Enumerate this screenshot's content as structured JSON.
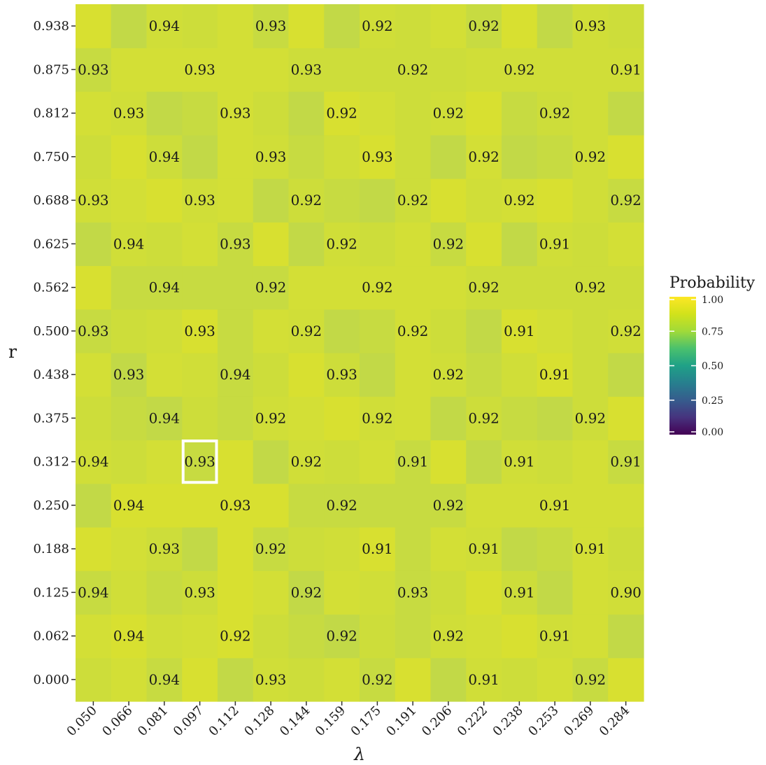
{
  "chart_data": {
    "type": "heatmap",
    "xlabel": "λ",
    "ylabel": "r",
    "x_ticks": [
      "0.050",
      "0.066",
      "0.081",
      "0.097",
      "0.112",
      "0.128",
      "0.144",
      "0.159",
      "0.175",
      "0.191",
      "0.206",
      "0.222",
      "0.238",
      "0.253",
      "0.269",
      "0.284"
    ],
    "y_ticks": [
      "0.000",
      "0.062",
      "0.125",
      "0.188",
      "0.250",
      "0.312",
      "0.375",
      "0.438",
      "0.500",
      "0.562",
      "0.625",
      "0.688",
      "0.750",
      "0.812",
      "0.875",
      "0.938"
    ],
    "grid": false,
    "legend": {
      "title": "Probability",
      "placement": "right",
      "ticks": [
        "0.00",
        "0.25",
        "0.50",
        "0.75",
        "1.00"
      ],
      "range": [
        0,
        1
      ]
    },
    "colorscale": "viridis",
    "highlight": {
      "x": "0.097",
      "y": "0.312",
      "color": "#ffffff"
    },
    "labels": [
      {
        "x": "0.081",
        "y": "0.938",
        "text": "0.94"
      },
      {
        "x": "0.128",
        "y": "0.938",
        "text": "0.93"
      },
      {
        "x": "0.175",
        "y": "0.938",
        "text": "0.92"
      },
      {
        "x": "0.222",
        "y": "0.938",
        "text": "0.92"
      },
      {
        "x": "0.269",
        "y": "0.938",
        "text": "0.93"
      },
      {
        "x": "0.050",
        "y": "0.875",
        "text": "0.93"
      },
      {
        "x": "0.097",
        "y": "0.875",
        "text": "0.93"
      },
      {
        "x": "0.144",
        "y": "0.875",
        "text": "0.93"
      },
      {
        "x": "0.191",
        "y": "0.875",
        "text": "0.92"
      },
      {
        "x": "0.238",
        "y": "0.875",
        "text": "0.92"
      },
      {
        "x": "0.284",
        "y": "0.875",
        "text": "0.91"
      },
      {
        "x": "0.066",
        "y": "0.812",
        "text": "0.93"
      },
      {
        "x": "0.112",
        "y": "0.812",
        "text": "0.93"
      },
      {
        "x": "0.159",
        "y": "0.812",
        "text": "0.92"
      },
      {
        "x": "0.206",
        "y": "0.812",
        "text": "0.92"
      },
      {
        "x": "0.253",
        "y": "0.812",
        "text": "0.92"
      },
      {
        "x": "0.081",
        "y": "0.750",
        "text": "0.94"
      },
      {
        "x": "0.128",
        "y": "0.750",
        "text": "0.93"
      },
      {
        "x": "0.175",
        "y": "0.750",
        "text": "0.93"
      },
      {
        "x": "0.222",
        "y": "0.750",
        "text": "0.92"
      },
      {
        "x": "0.269",
        "y": "0.750",
        "text": "0.92"
      },
      {
        "x": "0.050",
        "y": "0.688",
        "text": "0.93"
      },
      {
        "x": "0.097",
        "y": "0.688",
        "text": "0.93"
      },
      {
        "x": "0.144",
        "y": "0.688",
        "text": "0.92"
      },
      {
        "x": "0.191",
        "y": "0.688",
        "text": "0.92"
      },
      {
        "x": "0.238",
        "y": "0.688",
        "text": "0.92"
      },
      {
        "x": "0.284",
        "y": "0.688",
        "text": "0.92"
      },
      {
        "x": "0.066",
        "y": "0.625",
        "text": "0.94"
      },
      {
        "x": "0.112",
        "y": "0.625",
        "text": "0.93"
      },
      {
        "x": "0.159",
        "y": "0.625",
        "text": "0.92"
      },
      {
        "x": "0.206",
        "y": "0.625",
        "text": "0.92"
      },
      {
        "x": "0.253",
        "y": "0.625",
        "text": "0.91"
      },
      {
        "x": "0.081",
        "y": "0.562",
        "text": "0.94"
      },
      {
        "x": "0.128",
        "y": "0.562",
        "text": "0.92"
      },
      {
        "x": "0.175",
        "y": "0.562",
        "text": "0.92"
      },
      {
        "x": "0.222",
        "y": "0.562",
        "text": "0.92"
      },
      {
        "x": "0.269",
        "y": "0.562",
        "text": "0.92"
      },
      {
        "x": "0.050",
        "y": "0.500",
        "text": "0.93"
      },
      {
        "x": "0.097",
        "y": "0.500",
        "text": "0.93"
      },
      {
        "x": "0.144",
        "y": "0.500",
        "text": "0.92"
      },
      {
        "x": "0.191",
        "y": "0.500",
        "text": "0.92"
      },
      {
        "x": "0.238",
        "y": "0.500",
        "text": "0.91"
      },
      {
        "x": "0.284",
        "y": "0.500",
        "text": "0.92"
      },
      {
        "x": "0.066",
        "y": "0.438",
        "text": "0.93"
      },
      {
        "x": "0.112",
        "y": "0.438",
        "text": "0.94"
      },
      {
        "x": "0.159",
        "y": "0.438",
        "text": "0.93"
      },
      {
        "x": "0.206",
        "y": "0.438",
        "text": "0.92"
      },
      {
        "x": "0.253",
        "y": "0.438",
        "text": "0.91"
      },
      {
        "x": "0.081",
        "y": "0.375",
        "text": "0.94"
      },
      {
        "x": "0.128",
        "y": "0.375",
        "text": "0.92"
      },
      {
        "x": "0.175",
        "y": "0.375",
        "text": "0.92"
      },
      {
        "x": "0.222",
        "y": "0.375",
        "text": "0.92"
      },
      {
        "x": "0.269",
        "y": "0.375",
        "text": "0.92"
      },
      {
        "x": "0.050",
        "y": "0.312",
        "text": "0.94"
      },
      {
        "x": "0.097",
        "y": "0.312",
        "text": "0.93"
      },
      {
        "x": "0.144",
        "y": "0.312",
        "text": "0.92"
      },
      {
        "x": "0.191",
        "y": "0.312",
        "text": "0.91"
      },
      {
        "x": "0.238",
        "y": "0.312",
        "text": "0.91"
      },
      {
        "x": "0.284",
        "y": "0.312",
        "text": "0.91"
      },
      {
        "x": "0.066",
        "y": "0.250",
        "text": "0.94"
      },
      {
        "x": "0.112",
        "y": "0.250",
        "text": "0.93"
      },
      {
        "x": "0.159",
        "y": "0.250",
        "text": "0.92"
      },
      {
        "x": "0.206",
        "y": "0.250",
        "text": "0.92"
      },
      {
        "x": "0.253",
        "y": "0.250",
        "text": "0.91"
      },
      {
        "x": "0.081",
        "y": "0.188",
        "text": "0.93"
      },
      {
        "x": "0.128",
        "y": "0.188",
        "text": "0.92"
      },
      {
        "x": "0.175",
        "y": "0.188",
        "text": "0.91"
      },
      {
        "x": "0.222",
        "y": "0.188",
        "text": "0.91"
      },
      {
        "x": "0.269",
        "y": "0.188",
        "text": "0.91"
      },
      {
        "x": "0.050",
        "y": "0.125",
        "text": "0.94"
      },
      {
        "x": "0.097",
        "y": "0.125",
        "text": "0.93"
      },
      {
        "x": "0.144",
        "y": "0.125",
        "text": "0.92"
      },
      {
        "x": "0.191",
        "y": "0.125",
        "text": "0.93"
      },
      {
        "x": "0.238",
        "y": "0.125",
        "text": "0.91"
      },
      {
        "x": "0.284",
        "y": "0.125",
        "text": "0.90"
      },
      {
        "x": "0.066",
        "y": "0.062",
        "text": "0.94"
      },
      {
        "x": "0.112",
        "y": "0.062",
        "text": "0.92"
      },
      {
        "x": "0.159",
        "y": "0.062",
        "text": "0.92"
      },
      {
        "x": "0.206",
        "y": "0.062",
        "text": "0.92"
      },
      {
        "x": "0.253",
        "y": "0.062",
        "text": "0.91"
      },
      {
        "x": "0.081",
        "y": "0.000",
        "text": "0.94"
      },
      {
        "x": "0.128",
        "y": "0.000",
        "text": "0.93"
      },
      {
        "x": "0.175",
        "y": "0.000",
        "text": "0.92"
      },
      {
        "x": "0.222",
        "y": "0.000",
        "text": "0.91"
      },
      {
        "x": "0.269",
        "y": "0.000",
        "text": "0.92"
      }
    ]
  }
}
